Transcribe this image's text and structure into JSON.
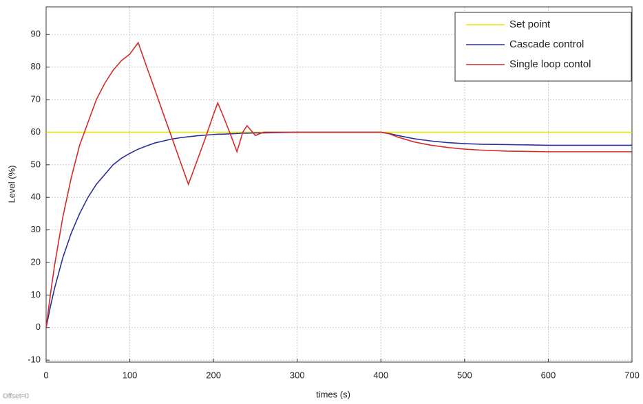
{
  "chart_data": {
    "type": "line",
    "xlabel": "times (s)",
    "ylabel": "Level (%)",
    "annotation": "Offset=0",
    "x": [
      0,
      5,
      10,
      20,
      30,
      40,
      50,
      60,
      70,
      80,
      90,
      100,
      110,
      120,
      130,
      140,
      150,
      160,
      170,
      180,
      190,
      200,
      205,
      210,
      220,
      228,
      235,
      240,
      250,
      260,
      300,
      350,
      400,
      410,
      420,
      440,
      460,
      480,
      500,
      520,
      550,
      600,
      650,
      700
    ],
    "series": [
      {
        "name": "Set point",
        "color": "#e8e800",
        "values": [
          60,
          60,
          60,
          60,
          60,
          60,
          60,
          60,
          60,
          60,
          60,
          60,
          60,
          60,
          60,
          60,
          60,
          60,
          60,
          60,
          60,
          60,
          60,
          60,
          60,
          60,
          60,
          60,
          60,
          60,
          60,
          60,
          60,
          60,
          60,
          60,
          60,
          60,
          60,
          60,
          60,
          60,
          60,
          60
        ]
      },
      {
        "name": "Cascade control",
        "color": "#2b2f9c",
        "values": [
          0,
          6.3,
          12,
          21.5,
          29,
          35,
          40,
          44,
          47,
          50,
          52,
          53.5,
          54.8,
          55.8,
          56.7,
          57.3,
          57.9,
          58.3,
          58.6,
          58.9,
          59.1,
          59.3,
          59.4,
          59.4,
          59.5,
          59.6,
          59.7,
          59.7,
          59.8,
          59.8,
          60,
          60,
          60,
          59.6,
          59,
          58,
          57.3,
          56.8,
          56.5,
          56.3,
          56.2,
          56,
          56,
          56
        ]
      },
      {
        "name": "Single loop contol",
        "color": "#d42a2a",
        "values": [
          0,
          10,
          19,
          34,
          46,
          56,
          63,
          70,
          75,
          79,
          82,
          84,
          87.5,
          80.2,
          73,
          65.7,
          58.5,
          51.2,
          44,
          51,
          58,
          65.5,
          69,
          66,
          59.5,
          54,
          60,
          62,
          59,
          60,
          60,
          60,
          60,
          59.5,
          58.5,
          57,
          56,
          55.3,
          54.8,
          54.5,
          54.2,
          54,
          54,
          54
        ]
      }
    ],
    "xlim": [
      0,
      700
    ],
    "ylim": [
      -10.6,
      98.5
    ],
    "xticks": [
      0,
      100,
      200,
      300,
      400,
      500,
      600,
      700
    ],
    "yticks": [
      -10,
      0,
      10,
      20,
      30,
      40,
      50,
      60,
      70,
      80,
      90
    ],
    "grid": true,
    "legend": "upper right"
  }
}
